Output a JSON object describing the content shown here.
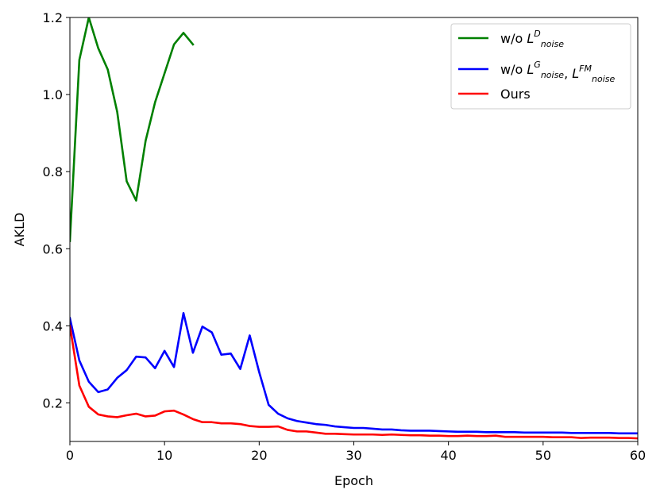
{
  "chart_data": {
    "type": "line",
    "xlabel": "Epoch",
    "ylabel": "AKLD",
    "xlim": [
      0,
      60
    ],
    "ylim": [
      0.1,
      1.2
    ],
    "xticks": [
      0,
      10,
      20,
      30,
      40,
      50,
      60
    ],
    "yticks": [
      0.2,
      0.4,
      0.6,
      0.8,
      1.0,
      1.2
    ],
    "xtick_labels": [
      "0",
      "10",
      "20",
      "30",
      "40",
      "50",
      "60"
    ],
    "ytick_labels": [
      "0.2",
      "0.4",
      "0.6",
      "0.8",
      "1.0",
      "1.2"
    ],
    "legend_position": "top-right",
    "grid": false,
    "series": [
      {
        "name": "w/o L_noise^D",
        "legend": {
          "prefix": "w/o ",
          "parts": [
            {
              "base": "L",
              "sup": "D",
              "sub": "noise"
            }
          ]
        },
        "color": "#008000",
        "x": [
          0,
          1,
          2,
          3,
          4,
          5,
          6,
          7,
          8,
          9,
          10,
          11,
          12,
          13
        ],
        "values": [
          0.62,
          1.09,
          1.2,
          1.12,
          1.065,
          0.955,
          0.775,
          0.725,
          0.88,
          0.98,
          1.055,
          1.13,
          1.16,
          1.13
        ]
      },
      {
        "name": "w/o L_noise^G, L_noise^FM",
        "legend": {
          "prefix": "w/o ",
          "parts": [
            {
              "base": "L",
              "sup": "G",
              "sub": "noise"
            },
            {
              "base": "L",
              "sup": "FM",
              "sub": "noise"
            }
          ]
        },
        "color": "#0000ff",
        "x": [
          0,
          1,
          2,
          3,
          4,
          5,
          6,
          7,
          8,
          9,
          10,
          11,
          12,
          13,
          14,
          15,
          16,
          17,
          18,
          19,
          20,
          21,
          22,
          23,
          24,
          25,
          26,
          27,
          28,
          29,
          30,
          31,
          32,
          33,
          34,
          35,
          36,
          37,
          38,
          39,
          40,
          41,
          42,
          43,
          44,
          45,
          46,
          47,
          48,
          49,
          50,
          51,
          52,
          53,
          54,
          55,
          56,
          57,
          58,
          59,
          60
        ],
        "values": [
          0.42,
          0.31,
          0.255,
          0.228,
          0.235,
          0.265,
          0.285,
          0.32,
          0.318,
          0.29,
          0.335,
          0.293,
          0.433,
          0.33,
          0.398,
          0.383,
          0.325,
          0.328,
          0.288,
          0.375,
          0.28,
          0.195,
          0.172,
          0.16,
          0.153,
          0.149,
          0.145,
          0.143,
          0.139,
          0.137,
          0.135,
          0.135,
          0.133,
          0.131,
          0.131,
          0.129,
          0.128,
          0.128,
          0.128,
          0.127,
          0.126,
          0.125,
          0.125,
          0.125,
          0.124,
          0.124,
          0.124,
          0.124,
          0.123,
          0.123,
          0.123,
          0.123,
          0.123,
          0.122,
          0.122,
          0.122,
          0.122,
          0.122,
          0.121,
          0.121,
          0.121
        ]
      },
      {
        "name": "Ours",
        "legend": {
          "prefix": "Ours",
          "parts": []
        },
        "color": "#ff0000",
        "x": [
          0,
          1,
          2,
          3,
          4,
          5,
          6,
          7,
          8,
          9,
          10,
          11,
          12,
          13,
          14,
          15,
          16,
          17,
          18,
          19,
          20,
          21,
          22,
          23,
          24,
          25,
          26,
          27,
          28,
          29,
          30,
          31,
          32,
          33,
          34,
          35,
          36,
          37,
          38,
          39,
          40,
          41,
          42,
          43,
          44,
          45,
          46,
          47,
          48,
          49,
          50,
          51,
          52,
          53,
          54,
          55,
          56,
          57,
          58,
          59,
          60
        ],
        "values": [
          0.4,
          0.245,
          0.19,
          0.17,
          0.165,
          0.163,
          0.168,
          0.172,
          0.165,
          0.167,
          0.178,
          0.18,
          0.17,
          0.158,
          0.15,
          0.15,
          0.147,
          0.147,
          0.145,
          0.14,
          0.138,
          0.138,
          0.139,
          0.13,
          0.126,
          0.126,
          0.123,
          0.12,
          0.12,
          0.119,
          0.118,
          0.118,
          0.118,
          0.117,
          0.118,
          0.117,
          0.116,
          0.116,
          0.115,
          0.115,
          0.114,
          0.114,
          0.115,
          0.114,
          0.114,
          0.115,
          0.112,
          0.112,
          0.112,
          0.112,
          0.112,
          0.111,
          0.111,
          0.111,
          0.109,
          0.11,
          0.11,
          0.11,
          0.109,
          0.109,
          0.108
        ]
      }
    ]
  }
}
